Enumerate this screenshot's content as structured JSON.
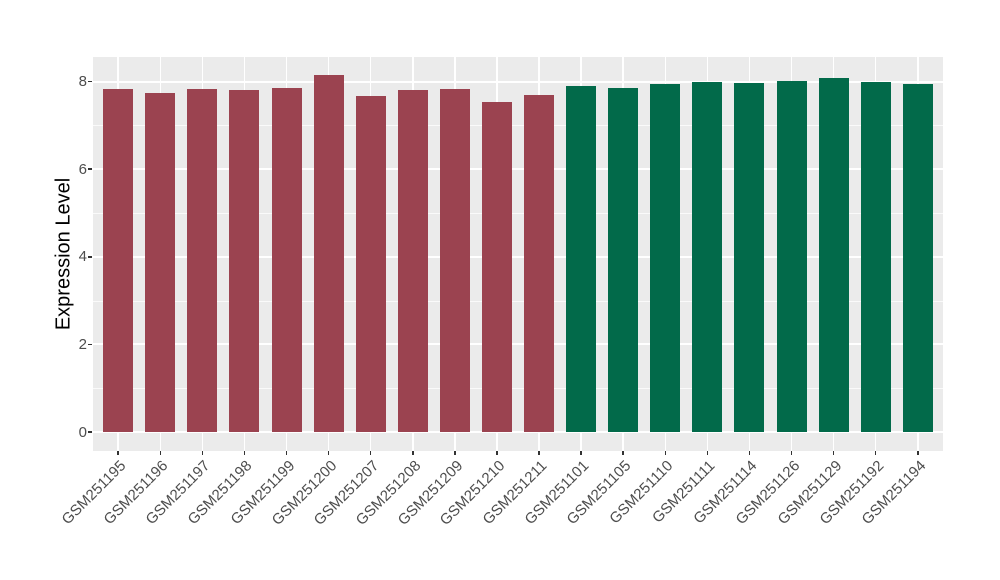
{
  "chart_data": {
    "type": "bar",
    "title": "",
    "xlabel": "",
    "ylabel": "Expression Level",
    "y_ticks": [
      0,
      2,
      4,
      6,
      8
    ],
    "y_tick_labels": [
      "0",
      "2",
      "4",
      "6",
      "8"
    ],
    "y_minor_ticks": [
      1,
      3,
      5,
      7
    ],
    "y_range": [
      -0.43,
      8.56
    ],
    "grid": "on",
    "legend": "none",
    "series": [
      {
        "name": "maroon-group",
        "color": "#9B4350",
        "categories": [
          "GSM251195",
          "GSM251196",
          "GSM251197",
          "GSM251198",
          "GSM251199",
          "GSM251200",
          "GSM251207",
          "GSM251208",
          "GSM251209",
          "GSM251210",
          "GSM251211"
        ],
        "values": [
          7.83,
          7.73,
          7.83,
          7.8,
          7.85,
          8.15,
          7.68,
          7.8,
          7.82,
          7.54,
          7.7
        ]
      },
      {
        "name": "green-group",
        "color": "#026A4A",
        "categories": [
          "GSM251101",
          "GSM251105",
          "GSM251110",
          "GSM251111",
          "GSM251114",
          "GSM251126",
          "GSM251129",
          "GSM251192",
          "GSM251194"
        ],
        "values": [
          7.91,
          7.85,
          7.94,
          8.0,
          7.96,
          8.02,
          8.08,
          8.0,
          7.94
        ]
      }
    ],
    "style": {
      "page_background": "#FFFFFF",
      "panel_background": "#EBEBEB",
      "grid_color": "#FFFFFF",
      "tick_color": "#333333",
      "axis_text_color": "#4D4D4D",
      "axis_title_color": "#000000"
    }
  }
}
